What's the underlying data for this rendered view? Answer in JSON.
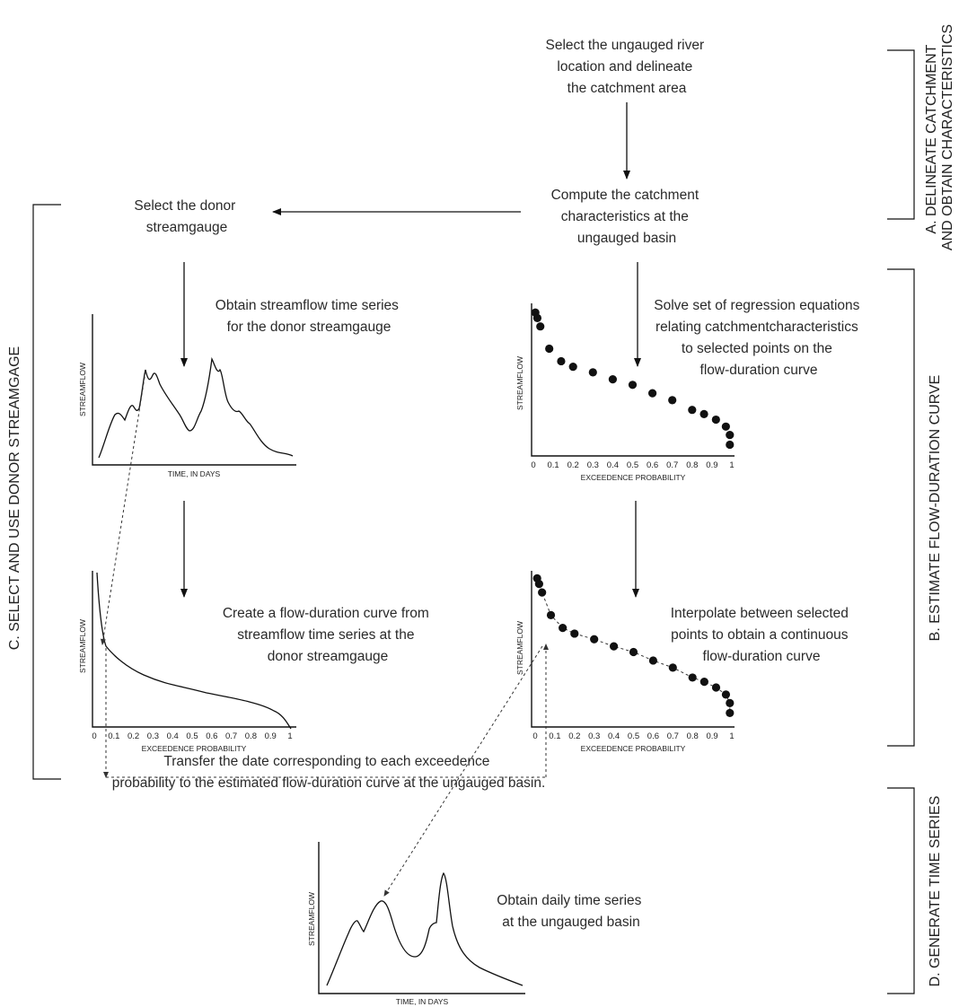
{
  "steps": {
    "select_location": [
      "Select the ungauged river",
      "location and delineate",
      "the catchment area"
    ],
    "compute_characteristics": [
      "Compute the catchment",
      "characteristics at the",
      "ungauged basin"
    ],
    "select_donor": [
      "Select the donor",
      "streamgauge"
    ],
    "obtain_streamflow": [
      "Obtain streamflow time series",
      "for the donor streamgauge"
    ],
    "solve_regression": [
      "Solve set of regression equations",
      "relating catchmentcharacteristics",
      "to selected points on the",
      "flow-duration curve"
    ],
    "create_fdc": [
      "Create a flow-duration curve from",
      "streamflow time series at the",
      "donor streamgauge"
    ],
    "interpolate": [
      "Interpolate between selected",
      "points to obtain a continuous",
      "flow-duration curve"
    ],
    "transfer": [
      "Transfer the date corresponding to each exceedence",
      "probability to the estimated flow-duration curve at the ungauged basin."
    ],
    "obtain_daily": [
      "Obtain daily time series",
      "at the ungauged basin"
    ]
  },
  "phases": {
    "a": [
      "A. DELINEATE CATCHMENT",
      "AND OBTAIN CHARACTERISTICS"
    ],
    "b": "B. ESTIMATE FLOW-DURATION CURVE",
    "c": "C. SELECT AND USE DONOR STREAMGAGE",
    "d": "D. GENERATE TIME SERIES"
  },
  "axis_labels": {
    "streamflow": "STREAMFLOW",
    "time_days": "TIME, IN DAYS",
    "exceedence": "EXCEEDENCE PROBABILITY"
  },
  "ticks": [
    "0",
    "0.1",
    "0.2",
    "0.3",
    "0.4",
    "0.5",
    "0.6",
    "0.7",
    "0.8",
    "0.9",
    "1"
  ],
  "selected_points": {
    "x": [
      0.01,
      0.02,
      0.035,
      0.08,
      0.14,
      0.2,
      0.3,
      0.4,
      0.5,
      0.6,
      0.7,
      0.8,
      0.86,
      0.92,
      0.97,
      0.99,
      0.99
    ],
    "y": [
      0.96,
      0.92,
      0.86,
      0.7,
      0.61,
      0.57,
      0.53,
      0.48,
      0.44,
      0.38,
      0.33,
      0.26,
      0.23,
      0.19,
      0.14,
      0.08,
      0.01
    ]
  }
}
